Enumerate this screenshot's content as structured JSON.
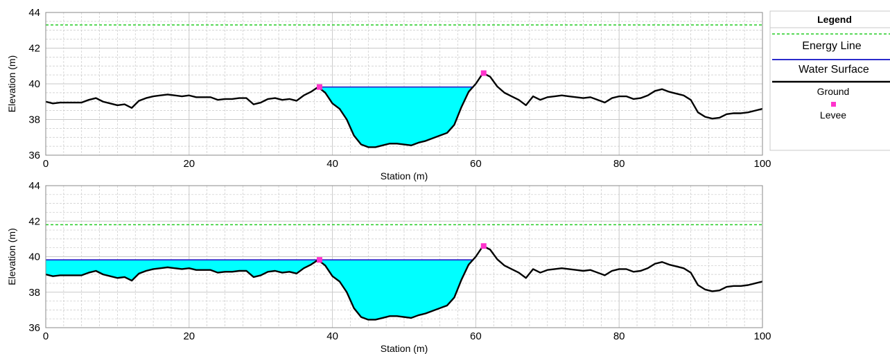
{
  "colors": {
    "energy_line": "#22cc22",
    "water_surface": "#2a2acc",
    "water_fill": "#00ffff",
    "ground": "#000000",
    "levee": "#ff33cc",
    "grid": "#c8c8c8"
  },
  "legend": {
    "title": "Legend",
    "items": [
      {
        "label": "Energy Line",
        "icon": "dashed-green-line"
      },
      {
        "label": "Water Surface",
        "icon": "blue-line"
      },
      {
        "label": "Ground",
        "icon": "black-line"
      },
      {
        "label": "Levee",
        "icon": "magenta-square"
      }
    ]
  },
  "chart_data": [
    {
      "type": "line",
      "xlabel": "Station (m)",
      "ylabel": "Elevation (m)",
      "xlim": [
        0,
        100
      ],
      "ylim": [
        36,
        44
      ],
      "xticks": [
        "0",
        "20",
        "40",
        "60",
        "80",
        "100"
      ],
      "yticks": [
        "36",
        "38",
        "40",
        "42",
        "44"
      ],
      "grid": true,
      "legend_position": "right",
      "energy_line": 43.3,
      "water_surface": {
        "elevation": 39.82,
        "x_start": 38.2,
        "x_end": 59.5
      },
      "levees": [
        {
          "x": 38.2,
          "y": 39.82
        },
        {
          "x": 61.1,
          "y": 40.6
        }
      ],
      "ground": {
        "x": [
          0,
          1,
          2,
          3,
          4,
          5,
          6,
          7,
          8,
          9,
          10,
          11,
          12,
          13,
          14,
          15,
          16,
          17,
          18,
          19,
          20,
          21,
          22,
          23,
          24,
          25,
          26,
          27,
          28,
          29,
          30,
          31,
          32,
          33,
          34,
          35,
          36,
          37,
          38,
          39,
          40,
          41,
          42,
          43,
          44,
          45,
          46,
          47,
          48,
          49,
          50,
          51,
          52,
          53,
          54,
          55,
          56,
          57,
          58,
          59,
          60,
          61,
          62,
          63,
          64,
          65,
          66,
          67,
          68,
          69,
          70,
          71,
          72,
          73,
          74,
          75,
          76,
          77,
          78,
          79,
          80,
          81,
          82,
          83,
          84,
          85,
          86,
          87,
          88,
          89,
          90,
          91,
          92,
          93,
          94,
          95,
          96,
          97,
          98,
          99,
          100
        ],
        "y": [
          39.0,
          38.9,
          38.95,
          38.95,
          38.95,
          38.95,
          39.1,
          39.2,
          39.0,
          38.9,
          38.8,
          38.85,
          38.65,
          39.05,
          39.2,
          39.3,
          39.35,
          39.4,
          39.35,
          39.3,
          39.35,
          39.25,
          39.25,
          39.25,
          39.1,
          39.15,
          39.15,
          39.2,
          39.2,
          38.85,
          38.95,
          39.15,
          39.2,
          39.1,
          39.15,
          39.05,
          39.35,
          39.55,
          39.82,
          39.5,
          38.9,
          38.6,
          38.0,
          37.1,
          36.6,
          36.45,
          36.45,
          36.55,
          36.65,
          36.65,
          36.6,
          36.55,
          36.7,
          36.8,
          36.95,
          37.1,
          37.25,
          37.7,
          38.7,
          39.55,
          40.0,
          40.6,
          40.4,
          39.85,
          39.5,
          39.3,
          39.1,
          38.8,
          39.3,
          39.1,
          39.25,
          39.3,
          39.35,
          39.3,
          39.25,
          39.2,
          39.25,
          39.1,
          38.95,
          39.2,
          39.3,
          39.3,
          39.15,
          39.2,
          39.35,
          39.6,
          39.7,
          39.55,
          39.45,
          39.35,
          39.1,
          38.4,
          38.15,
          38.05,
          38.1,
          38.3,
          38.35,
          38.35,
          38.4,
          38.5,
          38.6
        ]
      }
    },
    {
      "type": "line",
      "xlabel": "Station (m)",
      "ylabel": "Elevation (m)",
      "xlim": [
        0,
        100
      ],
      "ylim": [
        36,
        44
      ],
      "xticks": [
        "0",
        "20",
        "40",
        "60",
        "80",
        "100"
      ],
      "yticks": [
        "36",
        "38",
        "40",
        "42",
        "44"
      ],
      "grid": true,
      "energy_line": 41.8,
      "water_surface": {
        "elevation": 39.82,
        "x_start": 0,
        "x_end": 59.5
      },
      "levees": [
        {
          "x": 38.2,
          "y": 39.82
        },
        {
          "x": 61.1,
          "y": 40.6
        }
      ],
      "ground": {
        "x": [
          0,
          1,
          2,
          3,
          4,
          5,
          6,
          7,
          8,
          9,
          10,
          11,
          12,
          13,
          14,
          15,
          16,
          17,
          18,
          19,
          20,
          21,
          22,
          23,
          24,
          25,
          26,
          27,
          28,
          29,
          30,
          31,
          32,
          33,
          34,
          35,
          36,
          37,
          38,
          39,
          40,
          41,
          42,
          43,
          44,
          45,
          46,
          47,
          48,
          49,
          50,
          51,
          52,
          53,
          54,
          55,
          56,
          57,
          58,
          59,
          60,
          61,
          62,
          63,
          64,
          65,
          66,
          67,
          68,
          69,
          70,
          71,
          72,
          73,
          74,
          75,
          76,
          77,
          78,
          79,
          80,
          81,
          82,
          83,
          84,
          85,
          86,
          87,
          88,
          89,
          90,
          91,
          92,
          93,
          94,
          95,
          96,
          97,
          98,
          99,
          100
        ],
        "y": [
          39.0,
          38.9,
          38.95,
          38.95,
          38.95,
          38.95,
          39.1,
          39.2,
          39.0,
          38.9,
          38.8,
          38.85,
          38.65,
          39.05,
          39.2,
          39.3,
          39.35,
          39.4,
          39.35,
          39.3,
          39.35,
          39.25,
          39.25,
          39.25,
          39.1,
          39.15,
          39.15,
          39.2,
          39.2,
          38.85,
          38.95,
          39.15,
          39.2,
          39.1,
          39.15,
          39.05,
          39.35,
          39.55,
          39.82,
          39.5,
          38.9,
          38.6,
          38.0,
          37.1,
          36.6,
          36.45,
          36.45,
          36.55,
          36.65,
          36.65,
          36.6,
          36.55,
          36.7,
          36.8,
          36.95,
          37.1,
          37.25,
          37.7,
          38.7,
          39.55,
          40.0,
          40.6,
          40.4,
          39.85,
          39.5,
          39.3,
          39.1,
          38.8,
          39.3,
          39.1,
          39.25,
          39.3,
          39.35,
          39.3,
          39.25,
          39.2,
          39.25,
          39.1,
          38.95,
          39.2,
          39.3,
          39.3,
          39.15,
          39.2,
          39.35,
          39.6,
          39.7,
          39.55,
          39.45,
          39.35,
          39.1,
          38.4,
          38.15,
          38.05,
          38.1,
          38.3,
          38.35,
          38.35,
          38.4,
          38.5,
          38.6
        ]
      }
    }
  ]
}
